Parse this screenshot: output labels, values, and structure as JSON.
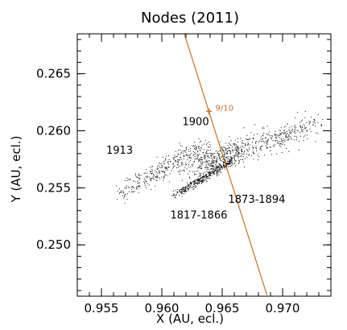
{
  "chart_data": {
    "type": "scatter",
    "title": "Nodes (2011)",
    "xlabel": "X (AU, ecl.)",
    "ylabel": "Y (AU, ecl.)",
    "xlim": [
      0.953,
      0.974
    ],
    "ylim": [
      0.2455,
      0.2685
    ],
    "xticks": [
      0.955,
      0.96,
      0.965,
      0.97
    ],
    "yticks": [
      0.25,
      0.255,
      0.26,
      0.265
    ],
    "xtick_labels": [
      "0.955",
      "0.960",
      "0.965",
      "0.970"
    ],
    "ytick_labels": [
      "0.250",
      "0.255",
      "0.260",
      "0.265"
    ],
    "grid": false,
    "orbit_line": {
      "color": "#c8701e",
      "points": [
        [
          0.96185,
          0.26855
        ],
        [
          0.9687,
          0.2456
        ]
      ]
    },
    "marker": {
      "x": 0.9639,
      "y": 0.2617,
      "label": "9/10",
      "color": "#c8701e"
    },
    "clusters": [
      {
        "label": "1913",
        "label_x": 0.9554,
        "label_y": 0.258,
        "cx": 0.96,
        "cy": 0.2567,
        "slope": 0.62,
        "len": 0.0048,
        "width": 0.00085,
        "n": 320,
        "seed": 11
      },
      {
        "label": "1900",
        "label_x": 0.9617,
        "label_y": 0.2605,
        "cx": 0.9672,
        "cy": 0.2586,
        "slope": 0.36,
        "len": 0.0068,
        "width": 0.0011,
        "n": 520,
        "seed": 23
      },
      {
        "label": "1873-1894",
        "label_x": 0.9655,
        "label_y": 0.2537,
        "cx": 0.9651,
        "cy": 0.2577,
        "slope": 0.9,
        "len": 0.002,
        "width": 0.001,
        "n": 150,
        "seed": 37
      },
      {
        "label": "1817-1866",
        "label_x": 0.9607,
        "label_y": 0.2523,
        "cx": 0.9636,
        "cy": 0.256,
        "slope": 0.62,
        "len": 0.0034,
        "width": 0.00035,
        "n": 380,
        "seed": 51
      }
    ]
  }
}
